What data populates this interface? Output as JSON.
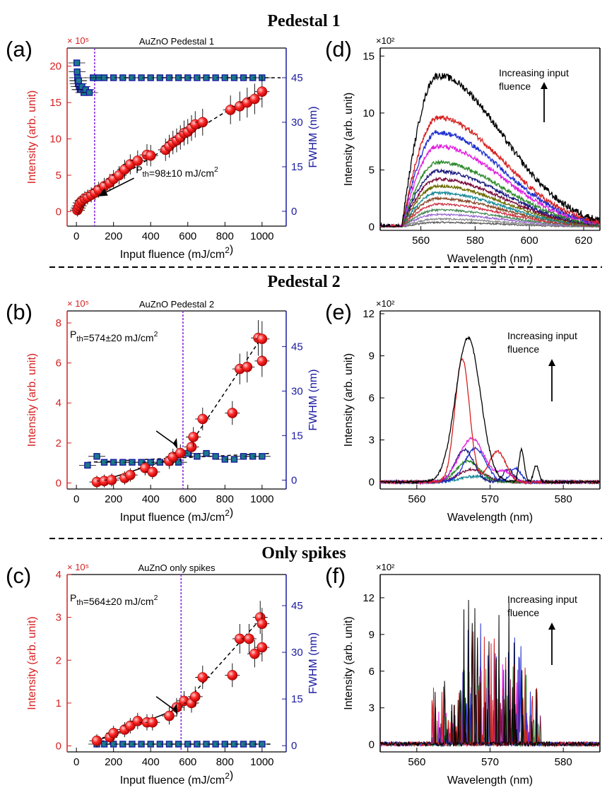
{
  "figure": {
    "sections": [
      "Pedestal 1",
      "Pedestal 2",
      "Only spikes"
    ],
    "colors": {
      "intensity": "#d62020",
      "fwhm": "#1a1aa0",
      "threshold": "#8a2be2",
      "point_fill": "#ff2a2a",
      "fwhm_fill": "#1a7a8a"
    }
  },
  "chart_data": [
    {
      "id": "a",
      "panel_label": "(a)",
      "type": "scatter",
      "title": "AuZnO Pedestal 1",
      "xlabel": "Input fluence (mJ/cm²)",
      "ylabel": "Intensity (arb. unit)",
      "y2label": "FWHM (nm)",
      "yscale_label": "× 10⁵",
      "xlim": [
        -50,
        1130
      ],
      "ylim": [
        -2,
        22.5
      ],
      "y2lim": [
        -5,
        55
      ],
      "xticks": [
        0,
        200,
        400,
        600,
        800,
        1000
      ],
      "yticks": [
        0,
        5,
        10,
        15,
        20
      ],
      "y2ticks": [
        0,
        15,
        30,
        45
      ],
      "threshold_x": 98,
      "annotation": "P_th=98±10 mJ/cm²",
      "intensity": {
        "x": [
          5,
          10,
          15,
          20,
          30,
          45,
          60,
          80,
          100,
          120,
          150,
          180,
          200,
          230,
          260,
          290,
          330,
          380,
          400,
          480,
          500,
          520,
          540,
          560,
          580,
          600,
          620,
          640,
          680,
          830,
          880,
          920,
          960,
          1000
        ],
        "y": [
          0.2,
          0.5,
          0.8,
          1.2,
          1.5,
          1.8,
          2.0,
          2.3,
          2.6,
          3.0,
          3.5,
          4.0,
          4.5,
          5.0,
          5.8,
          6.5,
          7.0,
          7.8,
          7.7,
          8.5,
          9.0,
          9.5,
          9.8,
          10.2,
          10.8,
          11.0,
          11.5,
          12.0,
          12.3,
          14.0,
          14.5,
          15.0,
          15.5,
          16.5
        ]
      },
      "fwhm": {
        "x": [
          2,
          4,
          6,
          8,
          10,
          12,
          15,
          20,
          25,
          30,
          40,
          50,
          70,
          90,
          120,
          150,
          200,
          250,
          300,
          350,
          400,
          450,
          500,
          550,
          600,
          650,
          700,
          750,
          800,
          850,
          900,
          950,
          1000
        ],
        "y": [
          50,
          47,
          45,
          44,
          43,
          44,
          42,
          41,
          41,
          42,
          40,
          41,
          40,
          45,
          45,
          45,
          45,
          45,
          45,
          45,
          45,
          45,
          45,
          45,
          45,
          45,
          45,
          45,
          45,
          45,
          45,
          45,
          45
        ]
      },
      "fit_lines": [
        {
          "style": "solid",
          "x": [
            0,
            100
          ],
          "y": [
            0,
            2.7
          ]
        },
        {
          "style": "dashed",
          "x": [
            100,
            1000
          ],
          "y": [
            2.7,
            16.8
          ]
        },
        {
          "style": "dashed",
          "axis": "y2",
          "x": [
            90,
            1100
          ],
          "y": [
            45,
            45
          ]
        }
      ]
    },
    {
      "id": "b",
      "panel_label": "(b)",
      "type": "scatter",
      "title": "AuZnO Pedestal 2",
      "xlabel": "Input fluence (mJ/cm²)",
      "ylabel": "Intensity (arb. unit)",
      "y2label": "FWHM (nm)",
      "yscale_label": "× 10⁵",
      "xlim": [
        -50,
        1130
      ],
      "ylim": [
        -0.3,
        8.6
      ],
      "y2lim": [
        -3,
        57
      ],
      "xticks": [
        0,
        200,
        400,
        600,
        800,
        1000
      ],
      "yticks": [
        0,
        2,
        4,
        6,
        8
      ],
      "y2ticks": [
        0,
        15,
        30,
        45
      ],
      "threshold_x": 574,
      "annotation": "P_th=574±20 mJ/cm²",
      "intensity": {
        "x": [
          110,
          150,
          190,
          260,
          290,
          370,
          410,
          500,
          520,
          560,
          620,
          630,
          680,
          840,
          880,
          920,
          980,
          1000,
          1000
        ],
        "y": [
          0.05,
          0.1,
          0.15,
          0.25,
          0.4,
          0.75,
          0.55,
          1.1,
          1.3,
          1.5,
          1.8,
          2.3,
          3.2,
          3.5,
          5.7,
          5.8,
          7.25,
          6.1,
          7.2
        ]
      },
      "fwhm": {
        "x": [
          60,
          110,
          150,
          200,
          250,
          300,
          350,
          400,
          450,
          500,
          550,
          600,
          650,
          700,
          750,
          800,
          850,
          900,
          950,
          1000
        ],
        "y": [
          5,
          8,
          6,
          6,
          6,
          6,
          6,
          6,
          6,
          6,
          6,
          9,
          8,
          9,
          8,
          7,
          7,
          8,
          8,
          8
        ]
      },
      "fit_lines": [
        {
          "style": "solid",
          "x": [
            100,
            574
          ],
          "y": [
            0,
            1.4
          ]
        },
        {
          "style": "dashed",
          "x": [
            574,
            1000
          ],
          "y": [
            1.4,
            7.3
          ]
        },
        {
          "style": "dashed",
          "axis": "y2",
          "x": [
            60,
            1050
          ],
          "y": [
            6,
            9
          ]
        }
      ]
    },
    {
      "id": "c",
      "panel_label": "(c)",
      "type": "scatter",
      "title": "AuZnO only spikes",
      "xlabel": "Input fluence (mJ/cm²)",
      "ylabel": "Intensity (arb. unit)",
      "y2label": "FWHM (nm)",
      "yscale_label": "× 10⁵",
      "xlim": [
        -50,
        1130
      ],
      "ylim": [
        -0.14,
        4.0
      ],
      "y2lim": [
        -2,
        55
      ],
      "xticks": [
        0,
        200,
        400,
        600,
        800,
        1000
      ],
      "yticks": [
        0,
        1,
        2,
        3,
        4
      ],
      "y2ticks": [
        0,
        15,
        30,
        45
      ],
      "threshold_x": 564,
      "annotation": "P_th=564±20 mJ/cm²",
      "intensity": {
        "x": [
          110,
          180,
          200,
          260,
          290,
          330,
          380,
          410,
          500,
          540,
          580,
          620,
          640,
          680,
          840,
          880,
          930,
          960,
          990,
          1000,
          1000
        ],
        "y": [
          0.12,
          0.2,
          0.3,
          0.38,
          0.47,
          0.58,
          0.55,
          0.55,
          0.7,
          0.9,
          1.05,
          1.0,
          1.15,
          1.6,
          1.65,
          2.5,
          2.5,
          2.15,
          3.0,
          2.85,
          2.3
        ]
      },
      "fwhm": {
        "x": [
          110,
          150,
          200,
          250,
          300,
          350,
          400,
          450,
          500,
          550,
          600,
          650,
          700,
          750,
          800,
          850,
          900,
          950,
          1000
        ],
        "y": [
          0.5,
          0.5,
          0.5,
          0.5,
          0.5,
          0.5,
          0.5,
          0.5,
          0.5,
          0.5,
          0.5,
          0.5,
          0.5,
          0.5,
          0.5,
          0.5,
          0.5,
          0.5,
          0.5
        ]
      },
      "fit_lines": [
        {
          "style": "solid",
          "x": [
            100,
            564
          ],
          "y": [
            0.1,
            0.9
          ]
        },
        {
          "style": "dashed",
          "x": [
            564,
            1000
          ],
          "y": [
            0.9,
            3.0
          ]
        },
        {
          "style": "dashed",
          "axis": "y2",
          "x": [
            100,
            1050
          ],
          "y": [
            0.5,
            0.5
          ]
        }
      ]
    },
    {
      "id": "d",
      "panel_label": "(d)",
      "type": "line",
      "xlabel": "Wavelength (nm)",
      "ylabel": "Intensity (arb. unit)",
      "yscale_label": "×10²",
      "xlim": [
        545,
        626
      ],
      "ylim": [
        -0.3,
        15.7
      ],
      "xticks": [
        560,
        580,
        600,
        620
      ],
      "yticks": [
        0,
        5,
        10,
        15
      ],
      "annotation": [
        "Increasing input",
        "fluence"
      ],
      "spectrum_shape": {
        "onset_nm": 553,
        "peak_nm": 566
      },
      "series": [
        {
          "name": "s1",
          "color": "#000000",
          "peak": 13.3
        },
        {
          "name": "s2",
          "color": "#d62020",
          "peak": 9.6
        },
        {
          "name": "s3",
          "color": "#1f2fd0",
          "peak": 8.3
        },
        {
          "name": "s4",
          "color": "#e020e0",
          "peak": 7.1
        },
        {
          "name": "s5",
          "color": "#2a8a2a",
          "peak": 5.7
        },
        {
          "name": "s6",
          "color": "#1a1a80",
          "peak": 4.9
        },
        {
          "name": "s7",
          "color": "#7a0a3a",
          "peak": 4.2
        },
        {
          "name": "s8",
          "color": "#6a6a00",
          "peak": 3.6
        },
        {
          "name": "s9",
          "color": "#1a8a9a",
          "peak": 3.0
        },
        {
          "name": "s10",
          "color": "#8a4a2a",
          "peak": 2.5
        },
        {
          "name": "s11",
          "color": "#cc3344",
          "peak": 2.0
        },
        {
          "name": "s12",
          "color": "#4a8a5a",
          "peak": 1.5
        },
        {
          "name": "s13",
          "color": "#9a6ad0",
          "peak": 1.1
        },
        {
          "name": "s14",
          "color": "#8a8a8a",
          "peak": 0.7
        },
        {
          "name": "s15",
          "color": "#5a5a5a",
          "peak": 0.4
        }
      ]
    },
    {
      "id": "e",
      "panel_label": "(e)",
      "type": "line",
      "xlabel": "Wavelength (nm)",
      "ylabel": "Intensity (arb. unit)",
      "yscale_label": "×10²",
      "xlim": [
        555,
        585
      ],
      "ylim": [
        -0.5,
        12.2
      ],
      "xticks": [
        560,
        570,
        580
      ],
      "yticks": [
        0,
        3,
        6,
        9,
        12
      ],
      "annotation": [
        "Increasing input",
        "fluence"
      ],
      "series": [
        {
          "name": "s1",
          "color": "#000000",
          "peaks": [
            [
              567,
              10.3,
              2.4
            ],
            [
              574.3,
              2.3,
              0.5
            ],
            [
              576.3,
              1.2,
              0.5
            ]
          ]
        },
        {
          "name": "s2",
          "color": "#d62020",
          "peaks": [
            [
              566.2,
              8.8,
              1.4
            ],
            [
              571,
              2.2,
              1.6
            ]
          ]
        },
        {
          "name": "s3",
          "color": "#e020e0",
          "peaks": [
            [
              567.5,
              3.1,
              2.4
            ],
            [
              572,
              0.7,
              1.4
            ]
          ]
        },
        {
          "name": "s4",
          "color": "#1a1a80",
          "peaks": [
            [
              566.5,
              2.3,
              1.8
            ],
            [
              572.5,
              0.9,
              1.0
            ]
          ]
        },
        {
          "name": "s5",
          "color": "#1f2fd0",
          "peaks": [
            [
              568,
              2.4,
              2.0
            ],
            [
              573.5,
              1.0,
              1.0
            ]
          ]
        },
        {
          "name": "s6",
          "color": "#2a8a2a",
          "peaks": [
            [
              567,
              1.5,
              2.2
            ]
          ]
        },
        {
          "name": "s7",
          "color": "#7a0a3a",
          "peaks": [
            [
              567.5,
              0.9,
              2.5
            ]
          ]
        },
        {
          "name": "s8",
          "color": "#1a8a9a",
          "peaks": [
            [
              568,
              0.4,
              3.0
            ]
          ]
        }
      ]
    },
    {
      "id": "f",
      "panel_label": "(f)",
      "type": "line",
      "xlabel": "Wavelength (nm)",
      "ylabel": "Intensity (arb. unit)",
      "yscale_label": "×10²",
      "xlim": [
        555,
        585
      ],
      "ylim": [
        -0.6,
        13.9
      ],
      "xticks": [
        560,
        570,
        580
      ],
      "yticks": [
        0,
        3,
        6,
        9,
        12
      ],
      "annotation": [
        "Increasing input",
        "fluence"
      ],
      "spike_band_nm": [
        562,
        577
      ],
      "series": [
        {
          "name": "s1",
          "color": "#000000",
          "max": 12.3
        },
        {
          "name": "s2",
          "color": "#d62020",
          "max": 10.6
        },
        {
          "name": "s3",
          "color": "#1f2fd0",
          "max": 10.0
        },
        {
          "name": "s4",
          "color": "#2a8a2a",
          "max": 7.5
        },
        {
          "name": "s5",
          "color": "#e020e0",
          "max": 6.5
        },
        {
          "name": "s6",
          "color": "#7a0a3a",
          "max": 5.5
        }
      ]
    }
  ]
}
